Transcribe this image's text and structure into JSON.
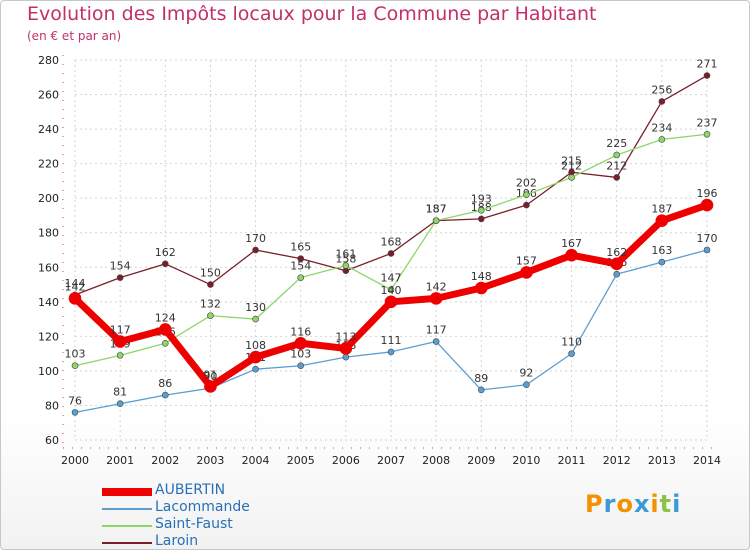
{
  "title": "Evolution des Impôts locaux pour la Commune par Habitant",
  "subtitle": "(en € et par an)",
  "logo": {
    "text": "Proxiti"
  },
  "chart_data": {
    "type": "line",
    "x": [
      "2000",
      "2001",
      "2002",
      "2003",
      "2004",
      "2005",
      "2006",
      "2007",
      "2008",
      "2009",
      "2010",
      "2011",
      "2012",
      "2013",
      "2014"
    ],
    "ylim": [
      60,
      280
    ],
    "yticks": [
      60,
      80,
      100,
      120,
      140,
      160,
      180,
      200,
      220,
      240,
      260,
      280
    ],
    "grid": true,
    "legend_position": "bottom-left",
    "series": [
      {
        "name": "Laroin",
        "color": "#7a1f2a",
        "width": 1.3,
        "values": [
          144,
          154,
          162,
          150,
          170,
          165,
          158,
          168,
          187,
          188,
          196,
          215,
          212,
          256,
          271
        ]
      },
      {
        "name": "Saint-Faust",
        "color": "#8fd66a",
        "width": 1.3,
        "values": [
          103,
          109,
          116,
          132,
          130,
          154,
          161,
          147,
          187,
          193,
          202,
          212,
          225,
          234,
          237
        ]
      },
      {
        "name": "Lacommande",
        "color": "#5a9fd4",
        "width": 1.3,
        "values": [
          76,
          81,
          86,
          90,
          101,
          103,
          108,
          111,
          117,
          89,
          92,
          110,
          156,
          163,
          170
        ]
      },
      {
        "name": "AUBERTIN",
        "color": "#ee0000",
        "width": 7,
        "values": [
          142,
          117,
          124,
          91,
          108,
          116,
          113,
          140,
          142,
          148,
          157,
          167,
          162,
          187,
          196
        ]
      }
    ],
    "legend_order": [
      "AUBERTIN",
      "Lacommande",
      "Saint-Faust",
      "Laroin"
    ]
  }
}
